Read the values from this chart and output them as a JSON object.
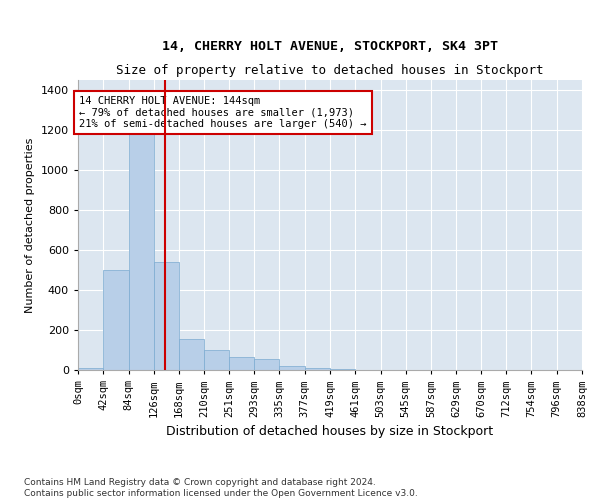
{
  "title": "14, CHERRY HOLT AVENUE, STOCKPORT, SK4 3PT",
  "subtitle": "Size of property relative to detached houses in Stockport",
  "xlabel": "Distribution of detached houses by size in Stockport",
  "ylabel": "Number of detached properties",
  "footer_line1": "Contains HM Land Registry data © Crown copyright and database right 2024.",
  "footer_line2": "Contains public sector information licensed under the Open Government Licence v3.0.",
  "annotation_line1": "14 CHERRY HOLT AVENUE: 144sqm",
  "annotation_line2": "← 79% of detached houses are smaller (1,973)",
  "annotation_line3": "21% of semi-detached houses are larger (540) →",
  "property_size": 144,
  "bar_color": "#b8cfe8",
  "bar_edge_color": "#7aaad0",
  "vline_color": "#cc0000",
  "annotation_box_color": "#cc0000",
  "background_color": "#dce6f0",
  "categories": [
    "0sqm",
    "42sqm",
    "84sqm",
    "126sqm",
    "168sqm",
    "210sqm",
    "251sqm",
    "293sqm",
    "335sqm",
    "377sqm",
    "419sqm",
    "461sqm",
    "503sqm",
    "545sqm",
    "587sqm",
    "629sqm",
    "670sqm",
    "712sqm",
    "754sqm",
    "796sqm",
    "838sqm"
  ],
  "bin_edges": [
    0,
    42,
    84,
    126,
    168,
    210,
    251,
    293,
    335,
    377,
    419,
    461,
    503,
    545,
    587,
    629,
    670,
    712,
    754,
    796,
    838
  ],
  "values": [
    10,
    500,
    1230,
    540,
    155,
    100,
    65,
    55,
    18,
    10,
    5,
    0,
    0,
    0,
    0,
    0,
    0,
    0,
    0,
    0
  ],
  "ylim": [
    0,
    1450
  ],
  "yticks": [
    0,
    200,
    400,
    600,
    800,
    1000,
    1200,
    1400
  ]
}
